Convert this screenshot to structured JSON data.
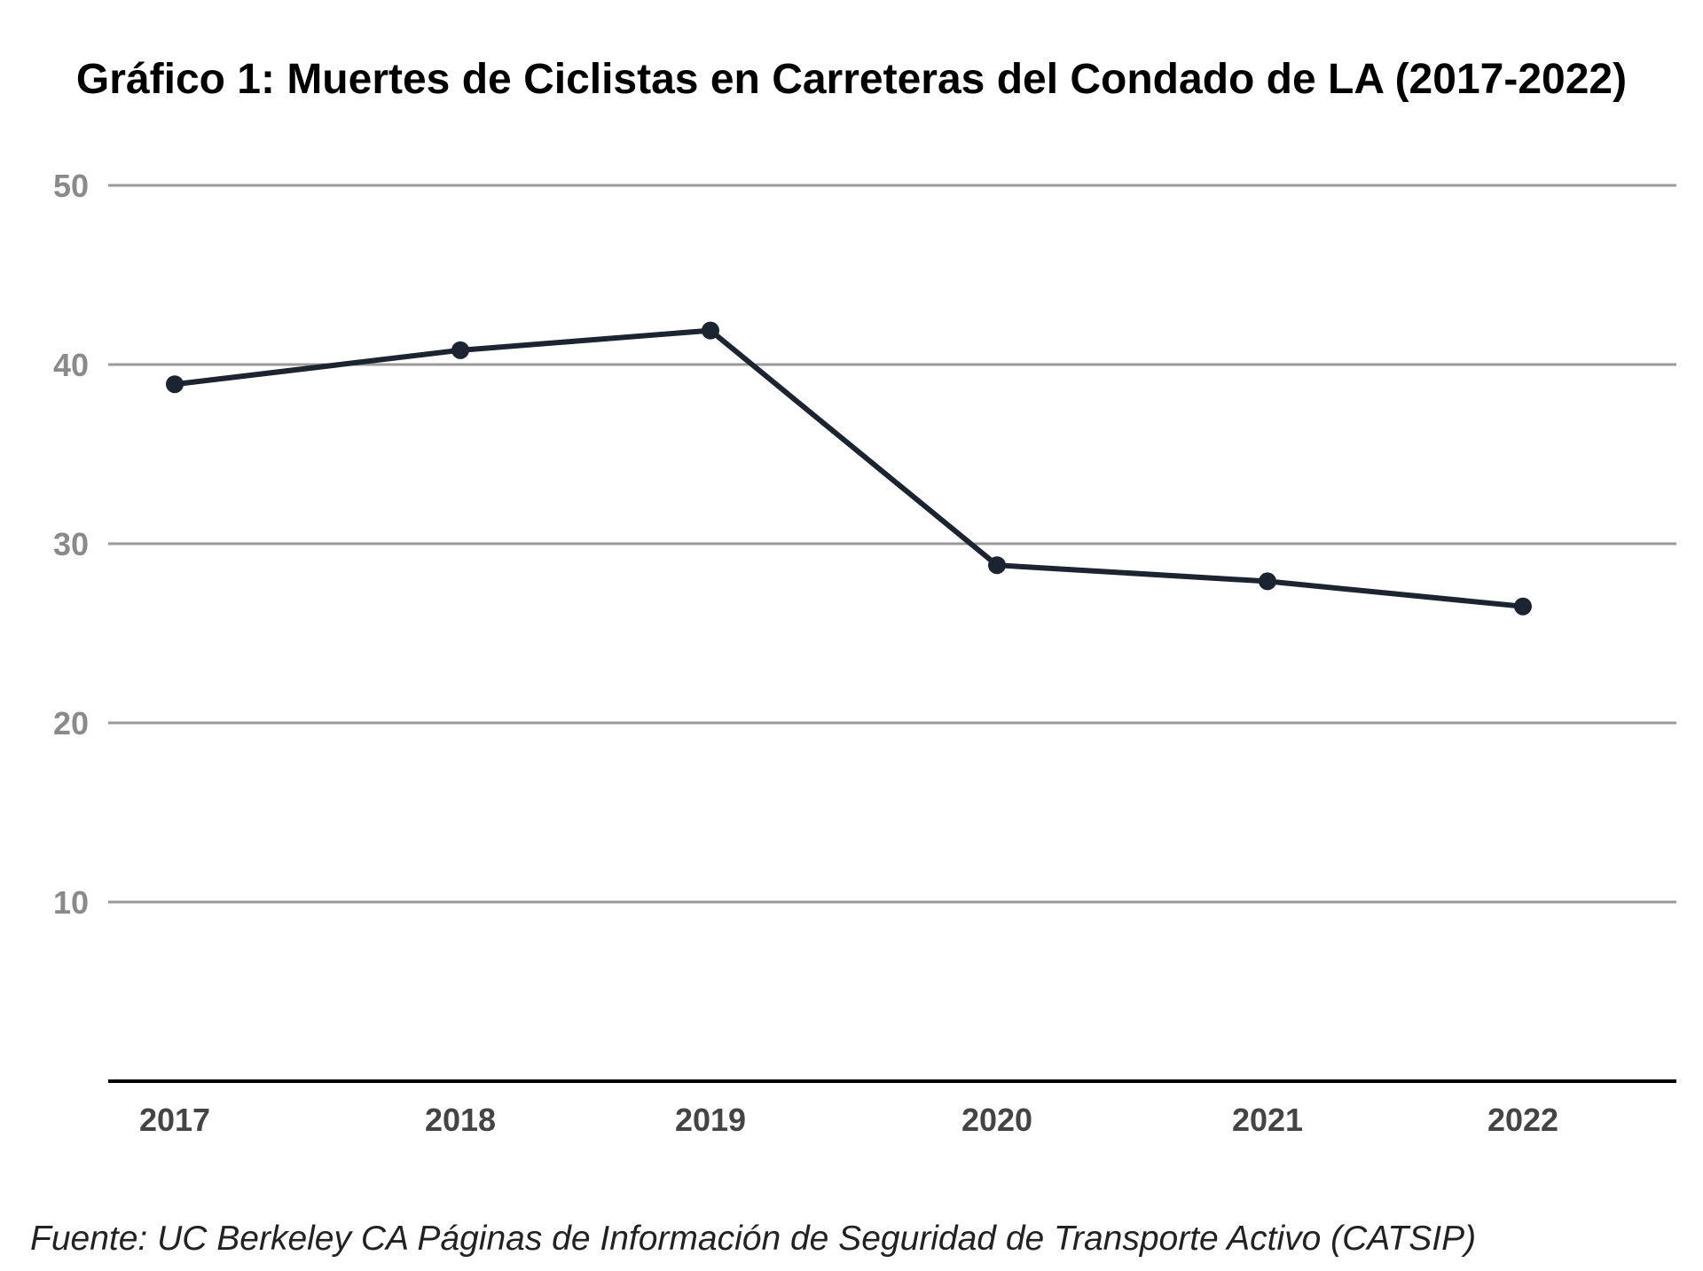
{
  "chart_data": {
    "type": "line",
    "title": "Gráfico 1: Muertes de Ciclistas en Carreteras del Condado de LA (2017-2022)",
    "source": "Fuente: UC Berkeley CA Páginas de Información de Seguridad de Transporte Activo (CATSIP)",
    "xlabel": "",
    "ylabel": "",
    "categories": [
      "2017",
      "2018",
      "2019",
      "2020",
      "2021",
      "2022"
    ],
    "series": [
      {
        "values": [
          38.9,
          40.8,
          41.9,
          28.8,
          27.9,
          26.5
        ],
        "color": "#1b2430"
      }
    ],
    "yticks": [
      "10",
      "20",
      "30",
      "40",
      "50"
    ],
    "ylim": [
      0,
      50
    ],
    "grid": true,
    "legend": "none",
    "colors": {
      "line": "#1b2430",
      "gridline": "#9a9a9a",
      "baseline": "#000000",
      "ytick": "#8a8a8a",
      "xtick": "#444444"
    }
  }
}
